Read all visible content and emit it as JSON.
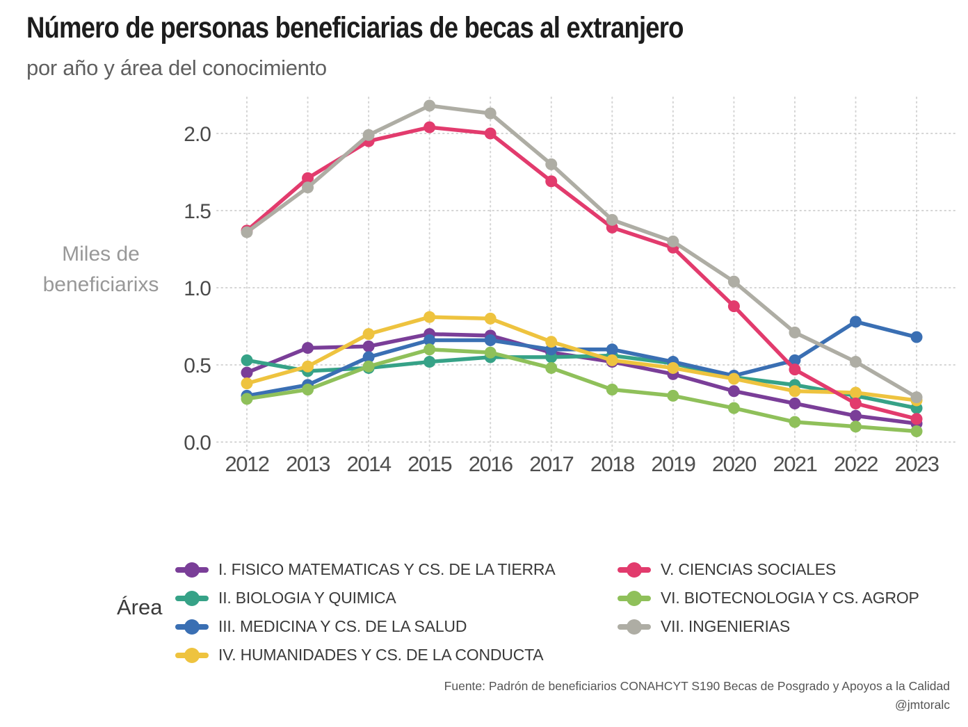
{
  "chart_data": {
    "type": "line",
    "title": "Número de personas beneficiarias de becas al extranjero",
    "subtitle": "por año y área del conocimiento",
    "ylabel": "Miles de beneficiarixs",
    "ylabel_lines": [
      "Miles de",
      "beneficiarixs"
    ],
    "xlabel": "",
    "x": [
      2012,
      2013,
      2014,
      2015,
      2016,
      2017,
      2018,
      2019,
      2020,
      2021,
      2022,
      2023
    ],
    "ylim": [
      0,
      2.3
    ],
    "yticks": [
      0.0,
      0.5,
      1.0,
      1.5,
      2.0
    ],
    "grid": "dotted horizontal and vertical",
    "legend_title": "Área",
    "legend_position": "bottom, two columns",
    "legend_columns": [
      4,
      3
    ],
    "series": [
      {
        "name": "I. FISICO MATEMATICAS Y CS. DE LA TIERRA",
        "color": "#7a3e98",
        "values": [
          0.45,
          0.61,
          0.62,
          0.7,
          0.69,
          0.58,
          0.52,
          0.44,
          0.33,
          0.25,
          0.17,
          0.12
        ]
      },
      {
        "name": "II. BIOLOGIA Y QUIMICA",
        "color": "#36a287",
        "values": [
          0.53,
          0.46,
          0.48,
          0.52,
          0.55,
          0.55,
          0.56,
          0.51,
          0.42,
          0.37,
          0.3,
          0.22
        ]
      },
      {
        "name": "III. MEDICINA Y CS. DE LA SALUD",
        "color": "#3a6fb3",
        "values": [
          0.3,
          0.37,
          0.55,
          0.66,
          0.66,
          0.6,
          0.6,
          0.52,
          0.43,
          0.53,
          0.78,
          0.68
        ]
      },
      {
        "name": "IV. HUMANIDADES Y CS. DE LA CONDUCTA",
        "color": "#eec33f",
        "values": [
          0.38,
          0.49,
          0.7,
          0.81,
          0.8,
          0.65,
          0.53,
          0.48,
          0.41,
          0.33,
          0.32,
          0.27
        ]
      },
      {
        "name": "V. CIENCIAS SOCIALES",
        "color": "#e23b6d",
        "values": [
          1.37,
          1.71,
          1.95,
          2.04,
          2.0,
          1.69,
          1.39,
          1.26,
          0.88,
          0.47,
          0.25,
          0.15
        ]
      },
      {
        "name": "VI. BIOTECNOLOGIA Y CS. AGROP",
        "color": "#8fc05a",
        "values": [
          0.28,
          0.34,
          0.49,
          0.6,
          0.58,
          0.48,
          0.34,
          0.3,
          0.22,
          0.13,
          0.1,
          0.07
        ]
      },
      {
        "name": "VII. INGENIERIAS",
        "color": "#aeada4",
        "values": [
          1.36,
          1.65,
          1.99,
          2.18,
          2.13,
          1.8,
          1.44,
          1.3,
          1.04,
          0.71,
          0.52,
          0.29
        ]
      }
    ]
  },
  "footer": {
    "source": "Fuente: Padrón de beneficiarios CONAHCYT S190 Becas de Posgrado y Apoyos a la Calidad",
    "handle": "@jmtoralc"
  }
}
